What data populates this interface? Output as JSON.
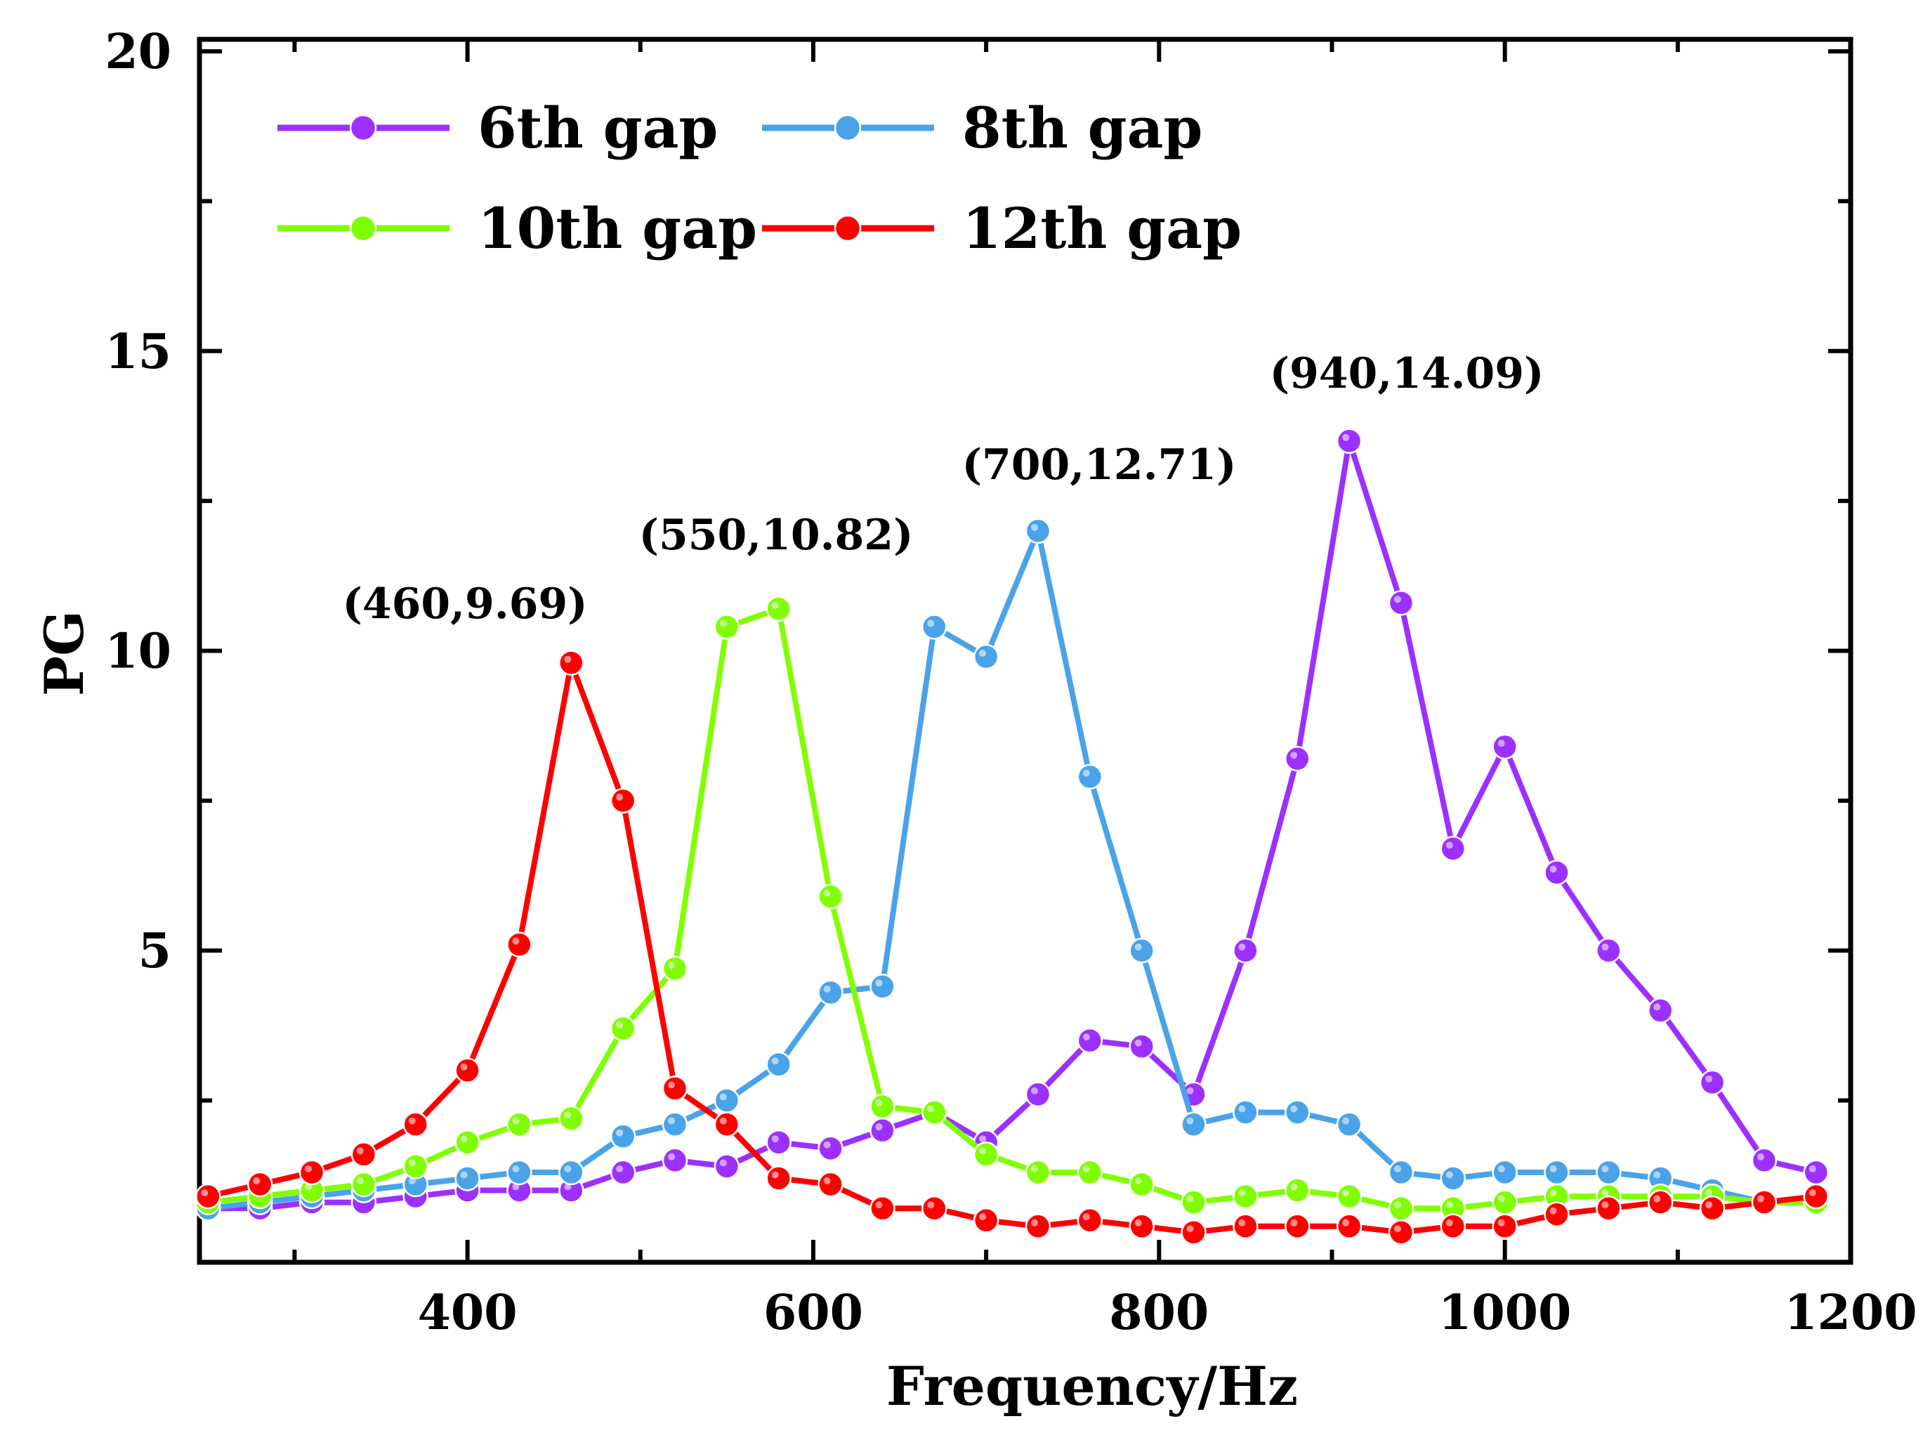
{
  "chart_data": {
    "type": "line",
    "xlabel": "Frequency/Hz",
    "ylabel": "PG",
    "xlim": [
      245,
      1200
    ],
    "ylim": [
      -0.2,
      20.2
    ],
    "xticks": [
      400,
      600,
      800,
      1000,
      1200
    ],
    "yticks": [
      5,
      10,
      15,
      20
    ],
    "grid": false,
    "legend_position": "top-left",
    "series": [
      {
        "name": "6th gap",
        "color": "#9b30ff",
        "x": [
          250,
          280,
          310,
          340,
          370,
          400,
          430,
          460,
          490,
          520,
          550,
          580,
          610,
          640,
          670,
          700,
          730,
          760,
          790,
          820,
          850,
          880,
          910,
          940,
          970,
          1000,
          1030,
          1060,
          1090,
          1120,
          1150,
          1180
        ],
        "y": [
          0.7,
          0.7,
          0.8,
          0.8,
          0.9,
          1.0,
          1.0,
          1.0,
          1.3,
          1.5,
          1.4,
          1.8,
          1.7,
          2.0,
          2.3,
          1.8,
          2.6,
          3.5,
          3.4,
          2.6,
          5.0,
          8.2,
          13.5,
          10.8,
          6.7,
          8.4,
          6.3,
          5.0,
          4.0,
          2.8,
          1.5,
          1.3
        ]
      },
      {
        "name": "8th gap",
        "color": "#4aa3e8",
        "x": [
          250,
          280,
          310,
          340,
          370,
          400,
          430,
          460,
          490,
          520,
          550,
          580,
          610,
          640,
          670,
          700,
          730,
          760,
          790,
          820,
          850,
          880,
          910,
          940,
          970,
          1000,
          1030,
          1060,
          1090,
          1120,
          1150,
          1180
        ],
        "y": [
          0.7,
          0.8,
          0.9,
          1.0,
          1.1,
          1.2,
          1.3,
          1.3,
          1.9,
          2.1,
          2.5,
          3.1,
          4.3,
          4.4,
          10.4,
          9.9,
          12.0,
          7.9,
          5.0,
          2.1,
          2.3,
          2.3,
          2.1,
          1.3,
          1.2,
          1.3,
          1.3,
          1.3,
          1.2,
          1.0,
          0.8,
          0.8
        ]
      },
      {
        "name": "10th gap",
        "color": "#7fff00",
        "x": [
          250,
          280,
          310,
          340,
          370,
          400,
          430,
          460,
          490,
          520,
          550,
          580,
          610,
          640,
          670,
          700,
          730,
          760,
          790,
          820,
          850,
          880,
          910,
          940,
          970,
          1000,
          1030,
          1060,
          1090,
          1120,
          1150,
          1180
        ],
        "y": [
          0.8,
          0.9,
          1.0,
          1.1,
          1.4,
          1.8,
          2.1,
          2.2,
          3.7,
          4.7,
          10.4,
          10.7,
          5.9,
          2.4,
          2.3,
          1.6,
          1.3,
          1.3,
          1.1,
          0.8,
          0.9,
          1.0,
          0.9,
          0.7,
          0.7,
          0.8,
          0.9,
          0.9,
          0.9,
          0.9,
          0.8,
          0.8
        ]
      },
      {
        "name": "12th gap",
        "color": "#ff0000",
        "x": [
          250,
          280,
          310,
          340,
          370,
          400,
          430,
          460,
          490,
          520,
          550,
          580,
          610,
          640,
          670,
          700,
          730,
          760,
          790,
          820,
          850,
          880,
          910,
          940,
          970,
          1000,
          1030,
          1060,
          1090,
          1120,
          1150,
          1180
        ],
        "y": [
          0.9,
          1.1,
          1.3,
          1.6,
          2.1,
          3.0,
          5.1,
          9.8,
          7.5,
          2.7,
          2.1,
          1.2,
          1.1,
          0.7,
          0.7,
          0.5,
          0.4,
          0.5,
          0.4,
          0.3,
          0.4,
          0.4,
          0.4,
          0.3,
          0.4,
          0.4,
          0.6,
          0.7,
          0.8,
          0.7,
          0.8,
          0.9
        ]
      }
    ],
    "annotations": [
      {
        "text": "(460,9.69)",
        "x": 460,
        "y": 9.69
      },
      {
        "text": "(550,10.82)",
        "x": 550,
        "y": 10.82
      },
      {
        "text": "(700,12.71)",
        "x": 700,
        "y": 12.71
      },
      {
        "text": "(940,14.09)",
        "x": 940,
        "y": 14.09
      }
    ]
  }
}
